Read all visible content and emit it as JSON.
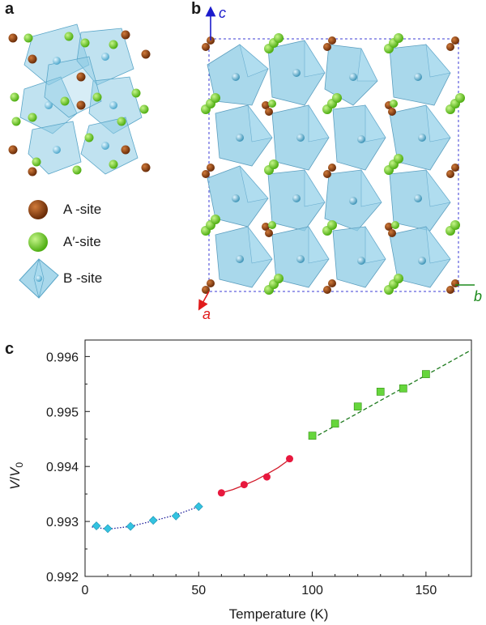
{
  "panel_labels": {
    "a": "a",
    "b": "b",
    "c": "c"
  },
  "legend": {
    "a_site": "A -site",
    "a_prime_site": "A′-site",
    "b_site": "B -site"
  },
  "axis_letters": {
    "a": "a",
    "b": "b",
    "c": "c"
  },
  "colors": {
    "a_site": "#8a3f0f",
    "a_prime_site": "#6fd020",
    "octahedron": "#8ccbe4",
    "axis_a": "#e01b1b",
    "axis_b": "#1d8a1d",
    "axis_c": "#1b1bcc",
    "series_low": "#33c3e0",
    "series_mid": "#e8183e",
    "series_high": "#66d63c"
  },
  "chart_data": {
    "type": "scatter",
    "title": "",
    "xlabel": "Temperature (K)",
    "ylabel_main": "V",
    "ylabel_sub": "V",
    "ylabel_sub_index": "0",
    "xlim": [
      0,
      170
    ],
    "ylim": [
      0.992,
      0.9963
    ],
    "xticks": [
      0,
      50,
      100,
      150
    ],
    "yticks": [
      0.992,
      0.993,
      0.994,
      0.995,
      0.996
    ],
    "ytick_labels": [
      "0.992",
      "0.993",
      "0.994",
      "0.995",
      "0.996"
    ],
    "grid": false,
    "series": [
      {
        "marker": "diamond",
        "color": "#33c3e0",
        "x": [
          5,
          10,
          20,
          30,
          40,
          50
        ],
        "y": [
          0.99292,
          0.99287,
          0.99291,
          0.99302,
          0.9931,
          0.99327
        ],
        "fit": {
          "style": "dotted",
          "color": "#1c1c99",
          "x": [
            3,
            10,
            20,
            30,
            40,
            50
          ],
          "y": [
            0.9929,
            0.99286,
            0.99291,
            0.99301,
            0.99312,
            0.99327
          ]
        }
      },
      {
        "marker": "circle",
        "color": "#e8183e",
        "x": [
          60,
          70,
          80,
          90
        ],
        "y": [
          0.99352,
          0.99367,
          0.99381,
          0.99414
        ],
        "fit": {
          "style": "solid",
          "color": "#d21a2a",
          "x": [
            60,
            65,
            70,
            75,
            80,
            85,
            90
          ],
          "y": [
            0.99352,
            0.99358,
            0.99366,
            0.99375,
            0.99386,
            0.99398,
            0.99413
          ]
        }
      },
      {
        "marker": "square",
        "color": "#66d63c",
        "x": [
          100,
          110,
          120,
          130,
          140,
          150
        ],
        "y": [
          0.99456,
          0.99478,
          0.99509,
          0.99536,
          0.99542,
          0.99568
        ],
        "fit": {
          "style": "dashed",
          "color": "#1d7a1d",
          "x": [
            100,
            170
          ],
          "y": [
            0.99451,
            0.99612
          ]
        }
      }
    ]
  }
}
